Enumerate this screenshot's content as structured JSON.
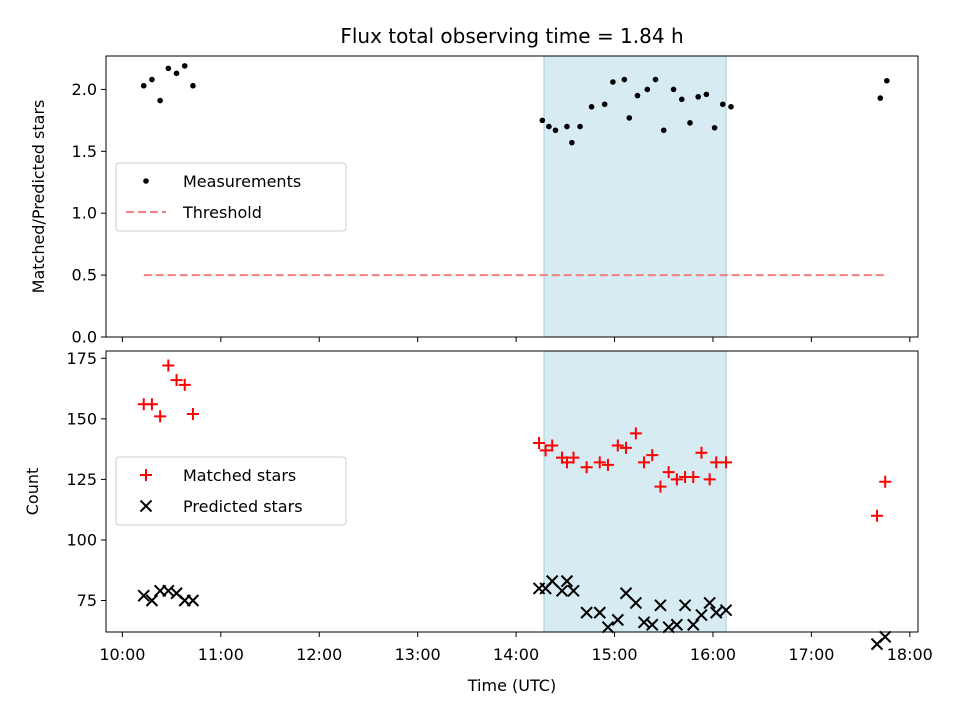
{
  "title": "Flux total observing time = 1.84 h",
  "chart_data": [
    {
      "type": "scatter",
      "ylabel": "Matched/Predicted stars",
      "xlim": [
        "09:50",
        "18:05"
      ],
      "ylim": [
        0,
        2.27
      ],
      "yticks": [
        "0.0",
        "0.5",
        "1.0",
        "1.5",
        "2.0"
      ],
      "shaded_span": [
        "14:17",
        "16:08"
      ],
      "legend_location": "center-left",
      "series": [
        {
          "name": "Measurements",
          "marker": "dot",
          "color": "#000000",
          "points": [
            [
              "10:13",
              2.03
            ],
            [
              "10:18",
              2.08
            ],
            [
              "10:23",
              1.91
            ],
            [
              "10:28",
              2.17
            ],
            [
              "10:33",
              2.13
            ],
            [
              "10:38",
              2.19
            ],
            [
              "10:43",
              2.03
            ],
            [
              "14:16",
              1.75
            ],
            [
              "14:20",
              1.7
            ],
            [
              "14:24",
              1.67
            ],
            [
              "14:31",
              1.7
            ],
            [
              "14:34",
              1.57
            ],
            [
              "14:39",
              1.7
            ],
            [
              "14:46",
              1.86
            ],
            [
              "14:54",
              1.88
            ],
            [
              "14:59",
              2.06
            ],
            [
              "15:06",
              2.08
            ],
            [
              "15:09",
              1.77
            ],
            [
              "15:14",
              1.95
            ],
            [
              "15:20",
              2.0
            ],
            [
              "15:25",
              2.08
            ],
            [
              "15:30",
              1.67
            ],
            [
              "15:36",
              2.0
            ],
            [
              "15:41",
              1.92
            ],
            [
              "15:46",
              1.73
            ],
            [
              "15:51",
              1.94
            ],
            [
              "15:56",
              1.96
            ],
            [
              "16:01",
              1.69
            ],
            [
              "16:06",
              1.88
            ],
            [
              "16:11",
              1.86
            ],
            [
              "17:42",
              1.93
            ],
            [
              "17:46",
              2.07
            ]
          ]
        },
        {
          "name": "Threshold",
          "marker": "dashed-line",
          "color": "#f08080",
          "points": [
            [
              "10:13",
              0.5
            ],
            [
              "17:46",
              0.5
            ]
          ]
        }
      ]
    },
    {
      "type": "scatter",
      "xlabel": "Time (UTC)",
      "ylabel": "Count",
      "xlim": [
        "09:50",
        "18:05"
      ],
      "ylim": [
        62,
        178
      ],
      "yticks": [
        "75",
        "100",
        "125",
        "150",
        "175"
      ],
      "xticks": [
        "10:00",
        "11:00",
        "12:00",
        "13:00",
        "14:00",
        "15:00",
        "16:00",
        "17:00",
        "18:00"
      ],
      "shaded_span": [
        "14:17",
        "16:08"
      ],
      "legend_location": "center-left",
      "series": [
        {
          "name": "Matched stars",
          "marker": "plus",
          "color": "#ff0000",
          "points": [
            [
              "10:13",
              156
            ],
            [
              "10:18",
              156
            ],
            [
              "10:23",
              151
            ],
            [
              "10:28",
              172
            ],
            [
              "10:33",
              166
            ],
            [
              "10:38",
              164
            ],
            [
              "10:43",
              152
            ],
            [
              "14:14",
              140
            ],
            [
              "14:18",
              137
            ],
            [
              "14:22",
              139
            ],
            [
              "14:28",
              134
            ],
            [
              "14:31",
              132
            ],
            [
              "14:35",
              134
            ],
            [
              "14:43",
              130
            ],
            [
              "14:51",
              132
            ],
            [
              "14:56",
              131
            ],
            [
              "15:02",
              139
            ],
            [
              "15:07",
              138
            ],
            [
              "15:13",
              144
            ],
            [
              "15:18",
              132
            ],
            [
              "15:23",
              135
            ],
            [
              "15:28",
              122
            ],
            [
              "15:33",
              128
            ],
            [
              "15:38",
              125
            ],
            [
              "15:43",
              126
            ],
            [
              "15:48",
              126
            ],
            [
              "15:53",
              136
            ],
            [
              "15:58",
              125
            ],
            [
              "16:02",
              132
            ],
            [
              "16:08",
              132
            ],
            [
              "17:40",
              110
            ],
            [
              "17:45",
              124
            ]
          ]
        },
        {
          "name": "Predicted stars",
          "marker": "x",
          "color": "#000000",
          "points": [
            [
              "10:13",
              77
            ],
            [
              "10:18",
              75
            ],
            [
              "10:23",
              79
            ],
            [
              "10:28",
              79
            ],
            [
              "10:33",
              78
            ],
            [
              "10:38",
              75
            ],
            [
              "10:43",
              75
            ],
            [
              "14:14",
              80
            ],
            [
              "14:18",
              80
            ],
            [
              "14:22",
              83
            ],
            [
              "14:28",
              79
            ],
            [
              "14:31",
              83
            ],
            [
              "14:35",
              79
            ],
            [
              "14:43",
              70
            ],
            [
              "14:51",
              70
            ],
            [
              "14:56",
              64
            ],
            [
              "15:02",
              67
            ],
            [
              "15:07",
              78
            ],
            [
              "15:13",
              74
            ],
            [
              "15:18",
              66
            ],
            [
              "15:23",
              65
            ],
            [
              "15:28",
              73
            ],
            [
              "15:33",
              64
            ],
            [
              "15:38",
              65
            ],
            [
              "15:43",
              73
            ],
            [
              "15:48",
              65
            ],
            [
              "15:53",
              69
            ],
            [
              "15:58",
              74
            ],
            [
              "16:02",
              70
            ],
            [
              "16:08",
              71
            ],
            [
              "17:40",
              57
            ],
            [
              "17:45",
              60
            ]
          ]
        }
      ]
    }
  ]
}
